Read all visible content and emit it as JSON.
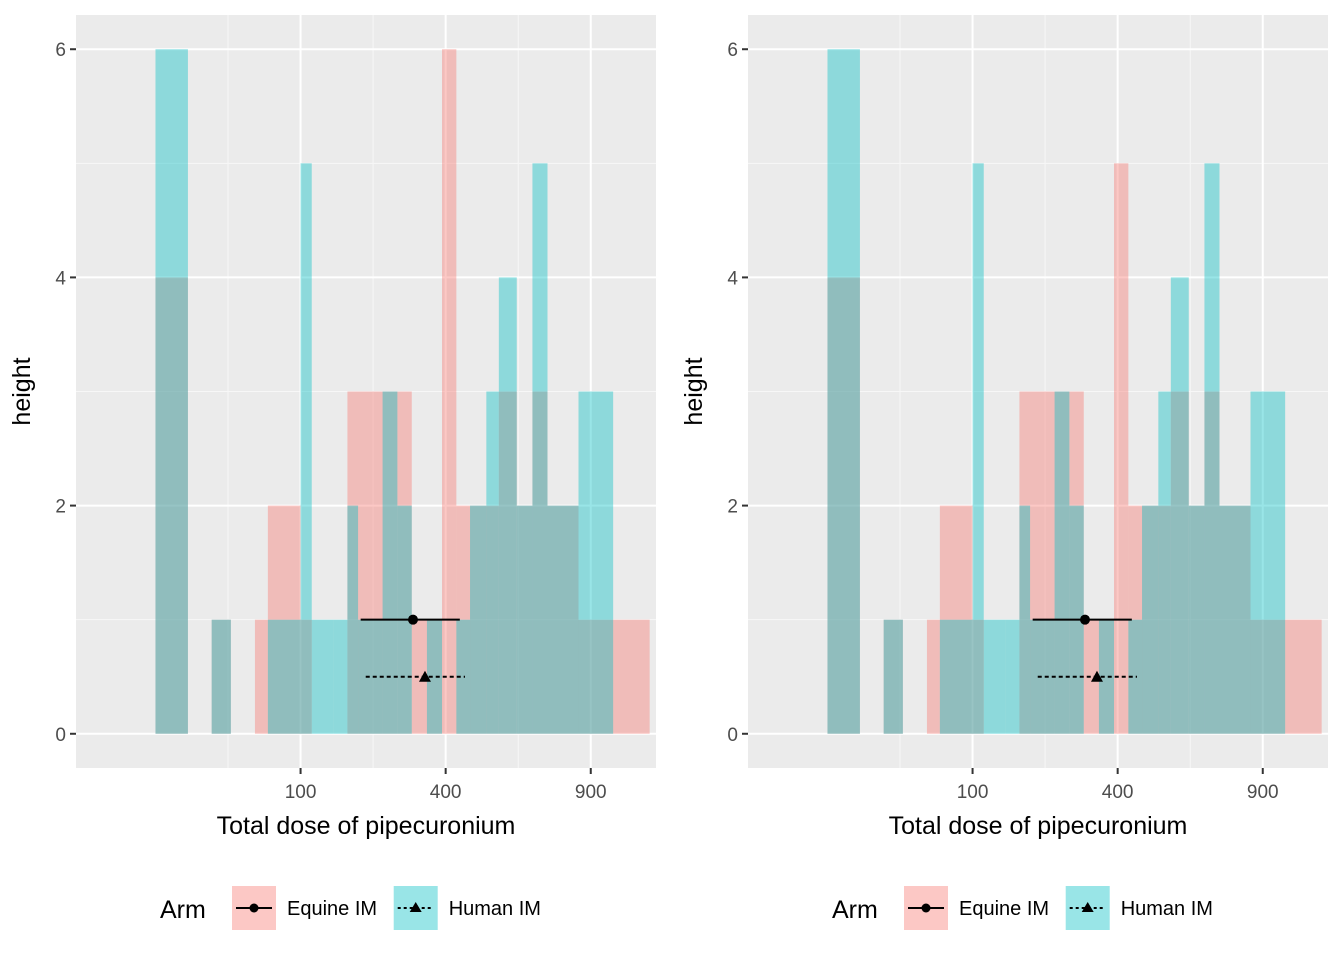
{
  "chart_data": [
    {
      "type": "bar",
      "xlabel": "Total dose of pipecuronium",
      "ylabel": "height",
      "x_scale": "sqrt",
      "xticks": [
        100,
        400,
        900
      ],
      "xlim": [
        -30,
        1190
      ],
      "yticks": [
        0,
        2,
        4,
        6
      ],
      "ylim": [
        -0.3,
        6.3
      ],
      "grid": true,
      "legend": {
        "position": "bottom",
        "title": "Arm",
        "entries": [
          "Equine IM",
          "Human IM"
        ]
      },
      "series": [
        {
          "name": "Equine IM",
          "color": "#F8766D",
          "bins": [
            {
              "x0": 0,
              "x1": 5,
              "value": 4
            },
            {
              "x0": 15,
              "x1": 27,
              "value": 1
            },
            {
              "x0": 47,
              "x1": 60,
              "value": 1
            },
            {
              "x0": 60,
              "x1": 100,
              "value": 2
            },
            {
              "x0": 100,
              "x1": 116,
              "value": 1
            },
            {
              "x0": 175,
              "x1": 245,
              "value": 3
            },
            {
              "x0": 245,
              "x1": 278,
              "value": 3
            },
            {
              "x0": 278,
              "x1": 312,
              "value": 3
            },
            {
              "x0": 312,
              "x1": 350,
              "value": 1
            },
            {
              "x0": 350,
              "x1": 390,
              "value": 1
            },
            {
              "x0": 390,
              "x1": 430,
              "value": 6
            },
            {
              "x0": 430,
              "x1": 560,
              "value": 2
            },
            {
              "x0": 560,
              "x1": 620,
              "value": 3
            },
            {
              "x0": 620,
              "x1": 675,
              "value": 2
            },
            {
              "x0": 675,
              "x1": 730,
              "value": 3
            },
            {
              "x0": 730,
              "x1": 850,
              "value": 2
            },
            {
              "x0": 850,
              "x1": 995,
              "value": 1
            },
            {
              "x0": 995,
              "x1": 1160,
              "value": 1
            }
          ]
        },
        {
          "name": "Human IM",
          "color": "#00BFC4",
          "bins": [
            {
              "x0": 0,
              "x1": 5,
              "value": 6
            },
            {
              "x0": 15,
              "x1": 27,
              "value": 1
            },
            {
              "x0": 60,
              "x1": 100,
              "value": 1
            },
            {
              "x0": 100,
              "x1": 116,
              "value": 5
            },
            {
              "x0": 116,
              "x1": 150,
              "value": 1
            },
            {
              "x0": 150,
              "x1": 175,
              "value": 1
            },
            {
              "x0": 175,
              "x1": 195,
              "value": 2
            },
            {
              "x0": 195,
              "x1": 245,
              "value": 1
            },
            {
              "x0": 245,
              "x1": 278,
              "value": 3
            },
            {
              "x0": 278,
              "x1": 312,
              "value": 2
            },
            {
              "x0": 312,
              "x1": 350,
              "value": 0
            },
            {
              "x0": 350,
              "x1": 390,
              "value": 1
            },
            {
              "x0": 430,
              "x1": 470,
              "value": 1
            },
            {
              "x0": 470,
              "x1": 520,
              "value": 2
            },
            {
              "x0": 520,
              "x1": 560,
              "value": 3
            },
            {
              "x0": 560,
              "x1": 620,
              "value": 4
            },
            {
              "x0": 620,
              "x1": 675,
              "value": 2
            },
            {
              "x0": 675,
              "x1": 730,
              "value": 5
            },
            {
              "x0": 730,
              "x1": 850,
              "value": 2
            },
            {
              "x0": 850,
              "x1": 995,
              "value": 3
            }
          ]
        }
      ],
      "intervals": [
        {
          "series": "Equine IM",
          "estimate": 315,
          "low": 200,
          "high": 440,
          "y": 1.0,
          "marker": "circle",
          "line": "solid"
        },
        {
          "series": "Human IM",
          "estimate": 345,
          "low": 210,
          "high": 455,
          "y": 0.5,
          "marker": "triangle",
          "line": "dashed"
        }
      ]
    },
    {
      "type": "bar",
      "xlabel": "Total dose of pipecuronium",
      "ylabel": "height",
      "x_scale": "sqrt",
      "xticks": [
        100,
        400,
        900
      ],
      "xlim": [
        -30,
        1190
      ],
      "yticks": [
        0,
        2,
        4,
        6
      ],
      "ylim": [
        -0.3,
        6.3
      ],
      "grid": true,
      "legend": {
        "position": "bottom",
        "title": "Arm",
        "entries": [
          "Equine IM",
          "Human IM"
        ]
      },
      "series": [
        {
          "name": "Equine IM",
          "color": "#F8766D",
          "bins": [
            {
              "x0": 0,
              "x1": 5,
              "value": 4
            },
            {
              "x0": 15,
              "x1": 27,
              "value": 1
            },
            {
              "x0": 47,
              "x1": 60,
              "value": 1
            },
            {
              "x0": 60,
              "x1": 100,
              "value": 2
            },
            {
              "x0": 100,
              "x1": 116,
              "value": 1
            },
            {
              "x0": 175,
              "x1": 245,
              "value": 3
            },
            {
              "x0": 245,
              "x1": 278,
              "value": 3
            },
            {
              "x0": 278,
              "x1": 312,
              "value": 3
            },
            {
              "x0": 312,
              "x1": 350,
              "value": 1
            },
            {
              "x0": 350,
              "x1": 390,
              "value": 1
            },
            {
              "x0": 390,
              "x1": 430,
              "value": 5
            },
            {
              "x0": 430,
              "x1": 560,
              "value": 2
            },
            {
              "x0": 560,
              "x1": 620,
              "value": 3
            },
            {
              "x0": 620,
              "x1": 675,
              "value": 2
            },
            {
              "x0": 675,
              "x1": 730,
              "value": 3
            },
            {
              "x0": 730,
              "x1": 850,
              "value": 2
            },
            {
              "x0": 850,
              "x1": 995,
              "value": 1
            },
            {
              "x0": 995,
              "x1": 1160,
              "value": 1
            }
          ]
        },
        {
          "name": "Human IM",
          "color": "#00BFC4",
          "bins": [
            {
              "x0": 0,
              "x1": 5,
              "value": 6
            },
            {
              "x0": 15,
              "x1": 27,
              "value": 1
            },
            {
              "x0": 60,
              "x1": 100,
              "value": 1
            },
            {
              "x0": 100,
              "x1": 116,
              "value": 5
            },
            {
              "x0": 116,
              "x1": 150,
              "value": 1
            },
            {
              "x0": 150,
              "x1": 175,
              "value": 1
            },
            {
              "x0": 175,
              "x1": 195,
              "value": 2
            },
            {
              "x0": 195,
              "x1": 245,
              "value": 1
            },
            {
              "x0": 245,
              "x1": 278,
              "value": 3
            },
            {
              "x0": 278,
              "x1": 312,
              "value": 2
            },
            {
              "x0": 312,
              "x1": 350,
              "value": 0
            },
            {
              "x0": 350,
              "x1": 390,
              "value": 1
            },
            {
              "x0": 430,
              "x1": 470,
              "value": 1
            },
            {
              "x0": 470,
              "x1": 520,
              "value": 2
            },
            {
              "x0": 520,
              "x1": 560,
              "value": 3
            },
            {
              "x0": 560,
              "x1": 620,
              "value": 4
            },
            {
              "x0": 620,
              "x1": 675,
              "value": 2
            },
            {
              "x0": 675,
              "x1": 730,
              "value": 5
            },
            {
              "x0": 730,
              "x1": 850,
              "value": 2
            },
            {
              "x0": 850,
              "x1": 995,
              "value": 3
            }
          ]
        }
      ],
      "intervals": [
        {
          "series": "Equine IM",
          "estimate": 315,
          "low": 200,
          "high": 440,
          "y": 1.0,
          "marker": "circle",
          "line": "solid"
        },
        {
          "series": "Human IM",
          "estimate": 345,
          "low": 210,
          "high": 455,
          "y": 0.5,
          "marker": "triangle",
          "line": "dashed"
        }
      ]
    }
  ]
}
